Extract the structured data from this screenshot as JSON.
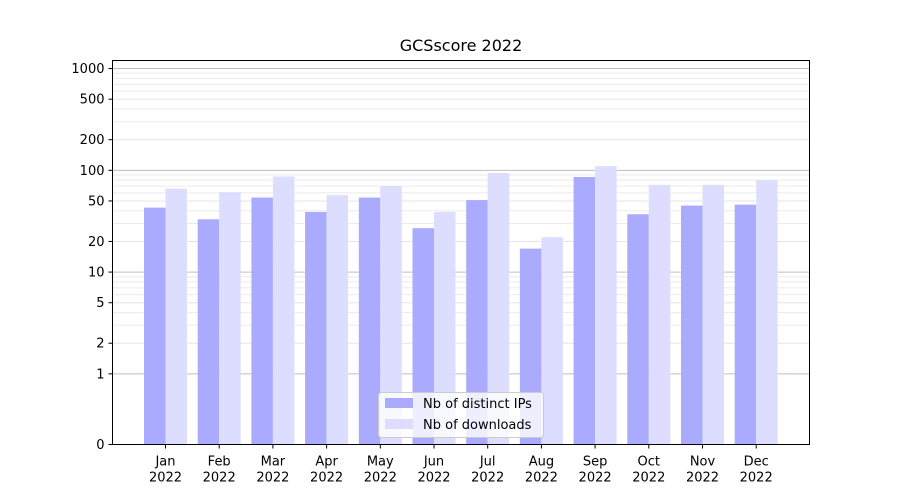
{
  "chart_data": {
    "type": "bar",
    "title": "GCSscore 2022",
    "xlabel": "",
    "ylabel": "",
    "y_scale": "symlog",
    "ylim": [
      0,
      1200
    ],
    "grid": "horizontal",
    "legend_position": "lower-center",
    "categories": [
      [
        "Jan",
        "2022"
      ],
      [
        "Feb",
        "2022"
      ],
      [
        "Mar",
        "2022"
      ],
      [
        "Apr",
        "2022"
      ],
      [
        "May",
        "2022"
      ],
      [
        "Jun",
        "2022"
      ],
      [
        "Jul",
        "2022"
      ],
      [
        "Aug",
        "2022"
      ],
      [
        "Sep",
        "2022"
      ],
      [
        "Oct",
        "2022"
      ],
      [
        "Nov",
        "2022"
      ],
      [
        "Dec",
        "2022"
      ]
    ],
    "yticks": [
      {
        "value": 0,
        "label": "0"
      },
      {
        "value": 1,
        "label": "1"
      },
      {
        "value": 2,
        "label": "2"
      },
      {
        "value": 5,
        "label": "5"
      },
      {
        "value": 10,
        "label": "10"
      },
      {
        "value": 20,
        "label": "20"
      },
      {
        "value": 50,
        "label": "50"
      },
      {
        "value": 100,
        "label": "100"
      },
      {
        "value": 200,
        "label": "200"
      },
      {
        "value": 500,
        "label": "500"
      },
      {
        "value": 1000,
        "label": "1000"
      }
    ],
    "series": [
      {
        "name": "Nb of distinct IPs",
        "color": "#aaaaff",
        "values": [
          43,
          33,
          54,
          39,
          54,
          27,
          51,
          17,
          86,
          37,
          45,
          46
        ]
      },
      {
        "name": "Nb of downloads",
        "color": "#ddddff",
        "values": [
          66,
          61,
          87,
          57,
          70,
          39,
          94,
          22,
          110,
          72,
          72,
          80
        ]
      }
    ]
  }
}
